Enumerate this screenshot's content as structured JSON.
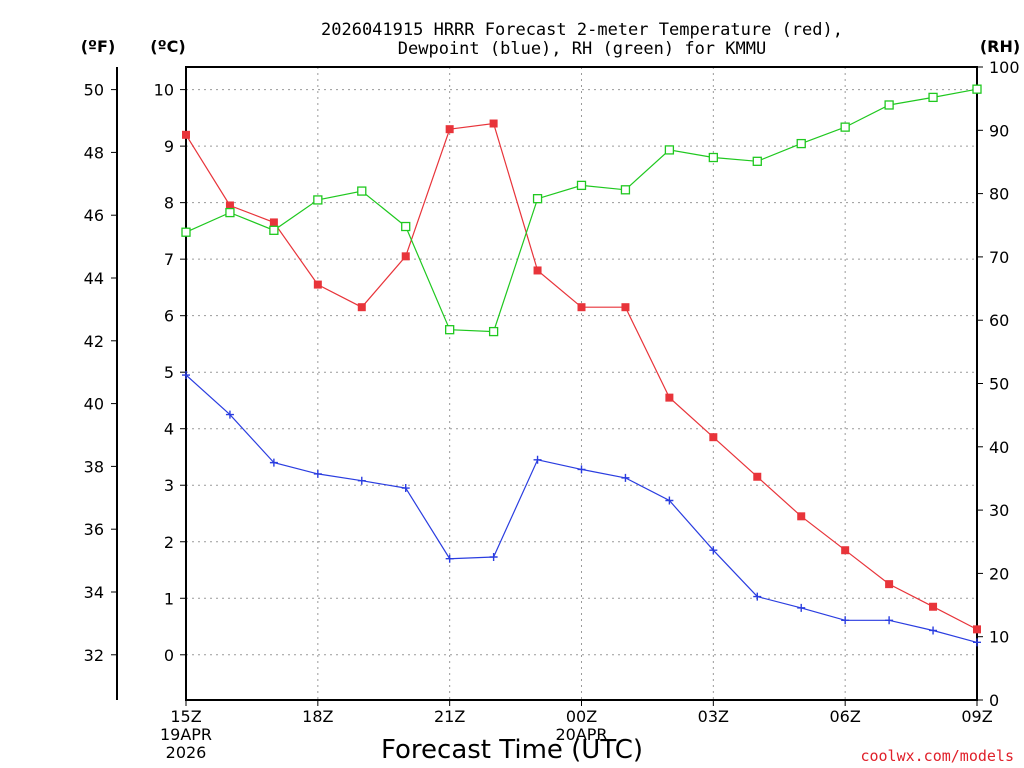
{
  "colors": {
    "temperature": "#e8343a",
    "dewpoint": "#2a3de0",
    "rh": "#1fc81f",
    "credit": "#e0202a"
  },
  "chart_data": {
    "type": "line",
    "title": "2026041915 HRRR Forecast 2-meter Temperature (red),",
    "subtitle": "Dewpoint (blue), RH (green) for KMMU",
    "xlabel": "Forecast Time (UTC)",
    "credit": "coolwx.com/models",
    "left_outer_unit": "(ºF)",
    "left_inner_unit": "(ºC)",
    "right_unit": "(RH)",
    "celsius_range": [
      -0.8,
      10.4
    ],
    "rh_range": [
      0,
      100
    ],
    "celsius_ticks": [
      "0",
      "1",
      "2",
      "3",
      "4",
      "5",
      "6",
      "7",
      "8",
      "9",
      "10"
    ],
    "fahrenheit_ticks": [
      "32",
      "34",
      "36",
      "38",
      "40",
      "42",
      "44",
      "46",
      "48",
      "50"
    ],
    "rh_ticks": [
      "0",
      "10",
      "20",
      "30",
      "40",
      "50",
      "60",
      "70",
      "80",
      "90",
      "100"
    ],
    "hours": [
      15,
      16,
      17,
      18,
      19,
      20,
      21,
      22,
      23,
      24,
      25,
      26,
      27,
      28,
      29,
      30,
      31,
      32,
      33
    ],
    "x_tick_labels": [
      {
        "hour": 15,
        "lines": [
          "15Z",
          "19APR",
          "2026"
        ]
      },
      {
        "hour": 18,
        "lines": [
          "18Z"
        ]
      },
      {
        "hour": 21,
        "lines": [
          "21Z"
        ]
      },
      {
        "hour": 24,
        "lines": [
          "00Z",
          "20APR"
        ]
      },
      {
        "hour": 27,
        "lines": [
          "03Z"
        ]
      },
      {
        "hour": 30,
        "lines": [
          "06Z"
        ]
      },
      {
        "hour": 33,
        "lines": [
          "09Z"
        ]
      }
    ],
    "series": [
      {
        "name": "Temperature",
        "axis": "celsius",
        "marker": "filled-square",
        "values": [
          9.2,
          7.95,
          7.65,
          6.55,
          6.15,
          7.05,
          9.3,
          9.4,
          6.8,
          6.15,
          6.15,
          4.55,
          3.85,
          3.15,
          2.45,
          1.85,
          1.25,
          0.85,
          0.45
        ]
      },
      {
        "name": "Dewpoint",
        "axis": "celsius",
        "marker": "plus",
        "values": [
          4.95,
          4.25,
          3.4,
          3.2,
          3.08,
          2.95,
          1.7,
          1.73,
          3.45,
          3.28,
          3.13,
          2.73,
          1.85,
          1.03,
          0.83,
          0.61,
          0.61,
          0.43,
          0.22
        ]
      },
      {
        "name": "RH",
        "axis": "rh",
        "marker": "open-square",
        "values": [
          73.9,
          77.0,
          74.2,
          79.0,
          80.4,
          74.8,
          58.5,
          58.2,
          79.2,
          81.3,
          80.6,
          86.9,
          85.7,
          85.1,
          87.9,
          90.5,
          94.0,
          95.2,
          96.5
        ]
      }
    ]
  }
}
